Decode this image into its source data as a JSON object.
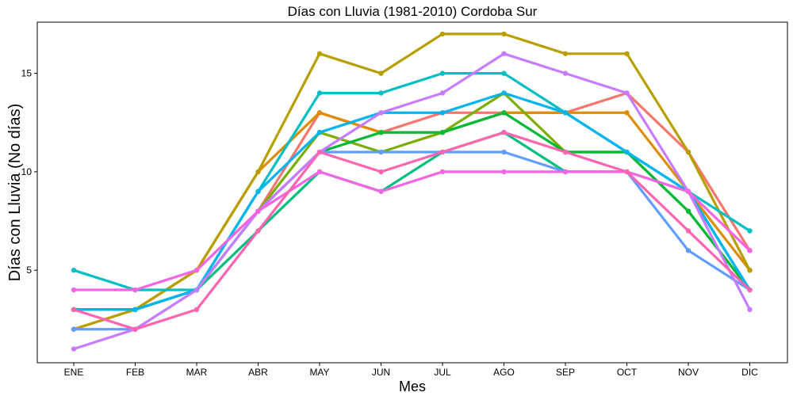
{
  "chart_data": {
    "type": "line",
    "title": "Días con Lluvia (1981-2010)  Cordoba Sur",
    "xlabel": "Mes",
    "ylabel": "Días con Lluvia (No días)",
    "categories": [
      "ENE",
      "FEB",
      "MAR",
      "ABR",
      "MAY",
      "JUN",
      "JUL",
      "AGO",
      "SEP",
      "OCT",
      "NOV",
      "DIC"
    ],
    "yticks": [
      5,
      10,
      15
    ],
    "ylim": [
      0.3,
      17.6
    ],
    "grid": false,
    "legend": "none",
    "series": [
      {
        "color": "#F8766D",
        "values": [
          3,
          3,
          5,
          8,
          13,
          12,
          13,
          13,
          13,
          14,
          11,
          6
        ]
      },
      {
        "color": "#DE8C00",
        "values": [
          2,
          3,
          5,
          10,
          13,
          12,
          12,
          13,
          13,
          13,
          9,
          5
        ]
      },
      {
        "color": "#B79F00",
        "values": [
          2,
          3,
          5,
          10,
          16,
          15,
          17,
          17,
          16,
          16,
          11,
          5
        ]
      },
      {
        "color": "#7CAE00",
        "values": [
          3,
          3,
          4,
          8,
          12,
          11,
          12,
          14,
          11,
          11,
          8,
          4
        ]
      },
      {
        "color": "#00BA38",
        "values": [
          3,
          3,
          4,
          8,
          11,
          12,
          12,
          13,
          11,
          11,
          8,
          4
        ]
      },
      {
        "color": "#00BF7D",
        "values": [
          3,
          3,
          4,
          7,
          10,
          9,
          11,
          12,
          10,
          10,
          9,
          4
        ]
      },
      {
        "color": "#00BFC4",
        "values": [
          5,
          4,
          4,
          9,
          14,
          14,
          15,
          15,
          13,
          11,
          9,
          7
        ]
      },
      {
        "color": "#00B4F0",
        "values": [
          3,
          3,
          4,
          9,
          12,
          13,
          13,
          14,
          13,
          11,
          9,
          4
        ]
      },
      {
        "color": "#619CFF",
        "values": [
          2,
          2,
          4,
          8,
          11,
          11,
          11,
          11,
          10,
          10,
          6,
          4
        ]
      },
      {
        "color": "#C77CFF",
        "values": [
          1,
          2,
          4,
          8,
          11,
          13,
          14,
          16,
          15,
          14,
          9,
          3
        ]
      },
      {
        "color": "#F564E3",
        "values": [
          4,
          4,
          5,
          8,
          10,
          9,
          10,
          10,
          10,
          10,
          9,
          6
        ]
      },
      {
        "color": "#FF64B0",
        "values": [
          3,
          2,
          3,
          7,
          11,
          10,
          11,
          12,
          11,
          10,
          7,
          4
        ]
      }
    ]
  }
}
